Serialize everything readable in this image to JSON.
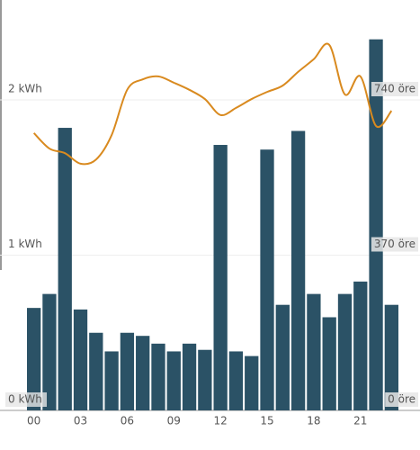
{
  "chart_data": {
    "type": "bar",
    "categories": [
      "00",
      null,
      null,
      "03",
      null,
      null,
      "06",
      null,
      null,
      "09",
      null,
      null,
      "12",
      null,
      null,
      "15",
      null,
      null,
      "18",
      null,
      null,
      "21",
      null,
      null
    ],
    "series": [
      {
        "type": "bar",
        "color": "#2b5266",
        "values": [
          0.66,
          0.75,
          1.82,
          0.65,
          0.5,
          0.38,
          0.5,
          0.48,
          0.43,
          0.38,
          0.43,
          0.39,
          1.71,
          0.38,
          0.35,
          1.68,
          0.68,
          1.8,
          0.75,
          0.6,
          0.75,
          0.83,
          2.39,
          0.68
        ]
      },
      {
        "type": "line",
        "axis": "y2",
        "color": "#d98a1f",
        "values": [
          661,
          624,
          613,
          588,
          598,
          656,
          764,
          789,
          796,
          781,
          764,
          742,
          704,
          721,
          742,
          759,
          774,
          807,
          837,
          871,
          753,
          796,
          678,
          714
        ]
      }
    ],
    "ylim": [
      0,
      2.6
    ],
    "yticks": [
      {
        "value": 0,
        "label": "0 kWh"
      },
      {
        "value": 1,
        "label": "1 kWh"
      },
      {
        "value": 2,
        "label": "2 kWh"
      }
    ],
    "y2lim": [
      0,
      962
    ],
    "y2ticks": [
      {
        "value": 0,
        "label": "0 öre"
      },
      {
        "value": 370,
        "label": "370 öre"
      },
      {
        "value": 740,
        "label": "740 öre"
      }
    ],
    "grid": true
  }
}
